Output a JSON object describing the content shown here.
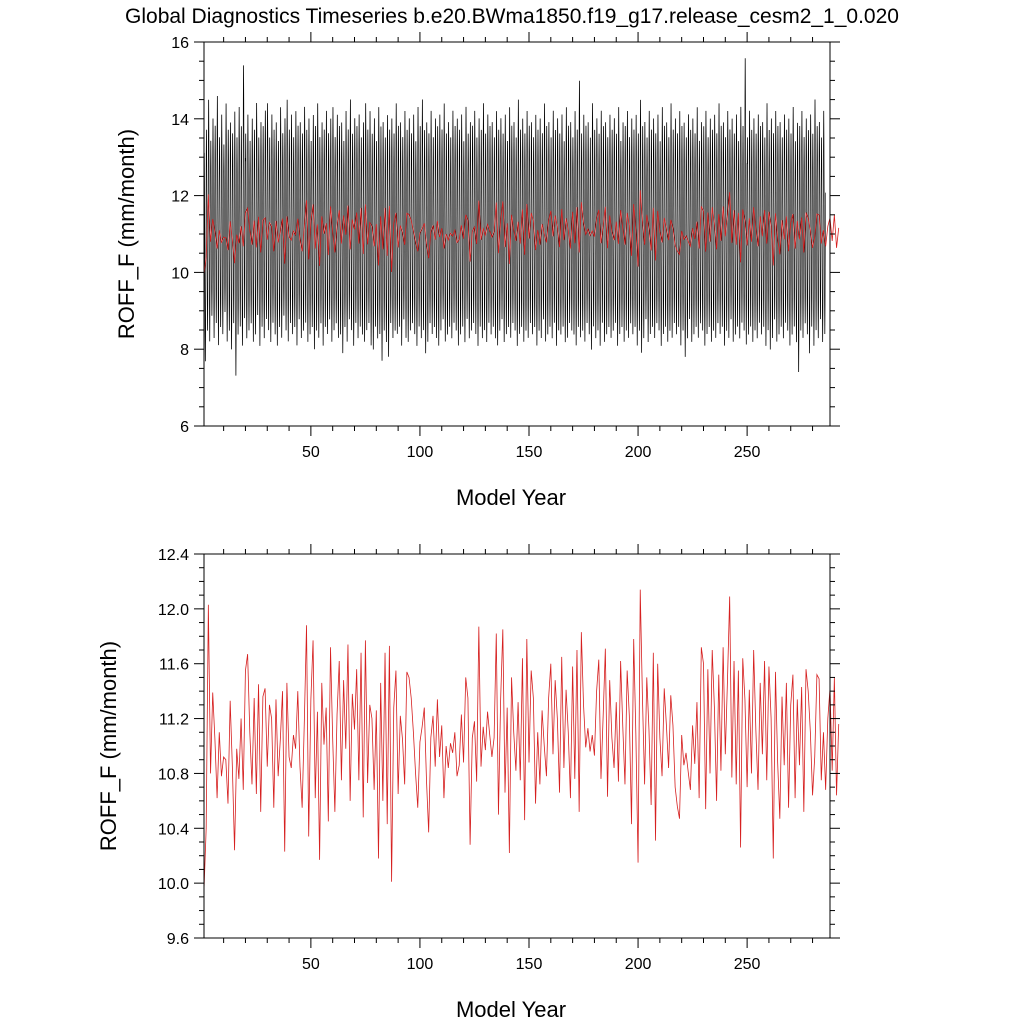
{
  "figure": {
    "title": "Global Diagnostics Timeseries b.e20.BWma1850.f19_g17.release_cesm2_1_0.020"
  },
  "colors": {
    "monthly_series": "#000000",
    "annual_series": "#d62020",
    "frame": "#000000",
    "background": "#ffffff"
  },
  "chart_data": [
    {
      "type": "line",
      "title": "",
      "xlabel": "Model Year",
      "ylabel": "ROFF_F (mm/month)",
      "xlim": [
        1,
        288
      ],
      "ylim": [
        6,
        16
      ],
      "x_ticks": [
        50,
        100,
        150,
        200,
        250
      ],
      "x_tick_labels": [
        "50",
        "100",
        "150",
        "200",
        "250"
      ],
      "y_ticks": [
        6,
        8,
        10,
        12,
        14,
        16
      ],
      "y_tick_labels": [
        "6",
        "8",
        "10",
        "12",
        "14",
        "16"
      ],
      "grid": false,
      "legend": "none",
      "series": [
        {
          "color": "#000000",
          "x_start": 1,
          "x_step": 0.0833333,
          "envelope_note": "",
          "annual_min": [
            7.6,
            8.4,
            8.1,
            8.8,
            8.2,
            8.6,
            8.0,
            8.5,
            8.3,
            8.9,
            8.1,
            8.4,
            7.9,
            8.6,
            7.2,
            8.3,
            8.5,
            8.0,
            8.7,
            8.2,
            8.4,
            8.6,
            8.1,
            8.3,
            8.8,
            8.0,
            8.5,
            8.2,
            8.7,
            8.4,
            8.1,
            8.6,
            8.3,
            8.0,
            8.5,
            8.2,
            8.8,
            8.4,
            8.1,
            8.6,
            8.3,
            8.5,
            8.0,
            8.7,
            8.2,
            8.4,
            8.6,
            8.1,
            8.3,
            8.5,
            7.9,
            8.4,
            8.2,
            8.6,
            8.0,
            8.5,
            8.3,
            8.7,
            8.1,
            8.4,
            8.6,
            8.2,
            8.3,
            7.8,
            8.5,
            8.1,
            8.7,
            8.4,
            8.0,
            8.6,
            8.2,
            8.5,
            8.3,
            8.1,
            8.4,
            8.6,
            8.0,
            7.9,
            8.5,
            8.2,
            8.3,
            7.6,
            8.4,
            8.1,
            7.7,
            8.6,
            8.2,
            8.4,
            8.3,
            8.5,
            8.0,
            8.7,
            8.2,
            8.1,
            8.4,
            8.6,
            8.3,
            8.0,
            8.5,
            8.2,
            8.4,
            7.8,
            8.1,
            8.6,
            8.3,
            8.5,
            8.2,
            8.0,
            8.4,
            8.7,
            8.1,
            8.3,
            8.5,
            8.2,
            8.6,
            8.4,
            8.0,
            8.3,
            8.5,
            8.1,
            8.7,
            8.2,
            8.4,
            8.6,
            8.3,
            8.0,
            8.5,
            8.2,
            8.4,
            8.1,
            8.6,
            8.3,
            8.5,
            8.2,
            8.0,
            8.4,
            8.7,
            8.1,
            8.3,
            8.5,
            8.2,
            8.6,
            8.4,
            8.0,
            8.3,
            8.5,
            8.1,
            8.4,
            8.2,
            8.6,
            8.3,
            8.5,
            8.0,
            8.4,
            8.2,
            8.7,
            8.1,
            8.3,
            8.5,
            8.2,
            8.6,
            8.0,
            8.4,
            8.3,
            8.5,
            8.1,
            8.2,
            8.6,
            8.4,
            8.3,
            8.0,
            8.5,
            8.2,
            8.4,
            8.1,
            8.6,
            8.3,
            7.9,
            8.5,
            8.2,
            8.4,
            8.0,
            8.6,
            8.1,
            8.3,
            8.5,
            8.2,
            8.4,
            8.6,
            8.0,
            8.3,
            8.5,
            8.1,
            8.4,
            8.2,
            8.6,
            8.3,
            8.5,
            8.0,
            8.4,
            7.8,
            8.2,
            8.7,
            8.1,
            8.3,
            8.5,
            8.2,
            8.6,
            8.4,
            8.0,
            8.3,
            8.5,
            8.1,
            8.4,
            8.2,
            8.6,
            8.3,
            8.5,
            8.0,
            8.4,
            7.7,
            8.2,
            8.7,
            8.1,
            8.3,
            8.5,
            8.2,
            8.6,
            8.4,
            8.0,
            8.3,
            8.5,
            8.1,
            8.4,
            8.2,
            8.6,
            8.3,
            8.5,
            8.0,
            8.4,
            8.2,
            8.7,
            8.1,
            8.3,
            8.5,
            8.2,
            8.6,
            8.4,
            8.0,
            8.3,
            8.5,
            8.1,
            8.4,
            8.2,
            8.6,
            8.3,
            8.5,
            8.0,
            8.4,
            7.9,
            8.2,
            8.7,
            8.1,
            8.3,
            8.5,
            8.2,
            8.6,
            8.4,
            8.0,
            8.3,
            8.5,
            8.1,
            7.3,
            8.4,
            8.2,
            8.6,
            8.3,
            7.8,
            8.5,
            8.0,
            8.4,
            8.2,
            8.7,
            8.1,
            8.3
          ],
          "annual_max": [
            13.2,
            13.8,
            14.6,
            13.5,
            14.1,
            13.9,
            14.7,
            13.6,
            14.2,
            13.4,
            14.5,
            13.8,
            14.0,
            13.7,
            14.3,
            13.6,
            14.4,
            13.9,
            15.5,
            13.7,
            14.2,
            13.5,
            14.1,
            13.8,
            14.5,
            13.6,
            14.0,
            13.9,
            14.3,
            14.5,
            13.6,
            14.2,
            13.8,
            14.0,
            13.5,
            14.4,
            13.7,
            14.1,
            14.6,
            13.8,
            14.2,
            13.6,
            14.3,
            13.9,
            14.0,
            13.7,
            14.4,
            13.8,
            14.1,
            13.5,
            14.2,
            13.9,
            14.5,
            13.6,
            14.0,
            13.8,
            14.3,
            13.7,
            14.1,
            14.4,
            13.6,
            14.2,
            13.9,
            14.0,
            13.5,
            14.3,
            13.8,
            14.6,
            13.7,
            14.1,
            13.9,
            14.2,
            13.6,
            14.0,
            14.5,
            13.8,
            14.3,
            13.7,
            14.1,
            13.5,
            14.4,
            13.9,
            14.0,
            13.6,
            14.2,
            13.8,
            14.1,
            13.7,
            14.5,
            13.9,
            14.0,
            13.6,
            14.3,
            13.8,
            14.1,
            13.7,
            14.2,
            13.5,
            14.4,
            13.9,
            14.6,
            13.8,
            14.0,
            13.7,
            14.3,
            13.6,
            14.1,
            13.9,
            14.2,
            13.8,
            14.5,
            13.7,
            14.0,
            13.6,
            14.3,
            13.9,
            14.1,
            13.8,
            14.2,
            13.5,
            14.4,
            13.7,
            14.0,
            13.9,
            14.3,
            13.6,
            14.1,
            13.8,
            14.5,
            13.7,
            14.2,
            13.9,
            14.0,
            13.6,
            14.3,
            13.8,
            14.1,
            13.7,
            14.2,
            13.5,
            14.4,
            13.9,
            14.0,
            13.6,
            14.6,
            13.8,
            14.1,
            13.7,
            14.3,
            13.9,
            14.0,
            13.6,
            14.2,
            13.8,
            14.1,
            13.7,
            14.5,
            13.9,
            14.0,
            13.6,
            14.3,
            13.8,
            14.1,
            13.7,
            14.2,
            13.5,
            14.4,
            13.9,
            14.0,
            13.6,
            14.3,
            13.8,
            15.1,
            13.7,
            14.2,
            13.9,
            14.0,
            13.6,
            14.5,
            13.8,
            14.1,
            13.7,
            14.3,
            13.9,
            14.0,
            13.6,
            14.2,
            13.8,
            14.1,
            13.7,
            14.4,
            13.5,
            14.0,
            13.9,
            14.3,
            13.6,
            14.1,
            13.8,
            14.2,
            13.7,
            14.6,
            13.9,
            14.0,
            13.6,
            14.3,
            13.8,
            14.1,
            13.7,
            14.2,
            13.5,
            14.4,
            13.9,
            14.0,
            13.6,
            14.5,
            13.8,
            14.1,
            13.7,
            14.3,
            13.9,
            14.0,
            13.6,
            14.2,
            13.8,
            14.1,
            13.7,
            14.4,
            13.5,
            14.0,
            13.9,
            14.3,
            13.6,
            14.1,
            13.8,
            14.2,
            13.7,
            14.5,
            13.9,
            14.0,
            13.6,
            14.3,
            13.8,
            14.1,
            13.7,
            14.2,
            13.5,
            14.4,
            13.9,
            15.7,
            13.6,
            14.3,
            13.8,
            14.1,
            13.7,
            14.2,
            13.9,
            14.0,
            13.6,
            14.5,
            13.8,
            14.1,
            13.7,
            14.3,
            13.9,
            14.0,
            13.6,
            14.2,
            13.8,
            14.1,
            13.7,
            14.4,
            13.5,
            14.0,
            13.9,
            14.3,
            13.6,
            14.1,
            13.8,
            14.2,
            13.7,
            14.6,
            13.9,
            14.0,
            13.6,
            14.3,
            13.8,
            15.0,
            13.7
          ]
        },
        {
          "color": "#d62020",
          "x_start": 1,
          "x_step": 1,
          "values": [
            9.95,
            10.4,
            12.03,
            10.8,
            11.39,
            11.05,
            10.62,
            11.1,
            10.78,
            10.92,
            10.9,
            10.58,
            11.33,
            10.85,
            10.24,
            10.98,
            10.76,
            11.2,
            10.68,
            11.55,
            11.67,
            11.1,
            10.72,
            11.35,
            10.65,
            11.45,
            10.52,
            11.36,
            11.42,
            10.85,
            11.3,
            11.2,
            10.55,
            11.34,
            10.78,
            11.05,
            11.4,
            10.23,
            11.46,
            10.92,
            10.84,
            11.08,
            10.98,
            11.4,
            10.85,
            10.55,
            11.18,
            11.88,
            10.34,
            11.34,
            11.77,
            10.62,
            11.25,
            10.17,
            11.46,
            11.01,
            11.28,
            10.45,
            11.72,
            11.05,
            10.52,
            11.23,
            11.62,
            10.75,
            11.48,
            10.98,
            11.74,
            10.6,
            11.38,
            11.12,
            11.56,
            10.75,
            11.68,
            10.48,
            11.77,
            10.73,
            11.3,
            11.2,
            10.68,
            11.26,
            10.18,
            11.46,
            10.6,
            11.68,
            10.43,
            11.73,
            10.01,
            11.28,
            11.55,
            10.65,
            11.22,
            11.05,
            10.72,
            11.54,
            11.5,
            11.35,
            11.1,
            10.8,
            10.55,
            11.03,
            11.14,
            11.28,
            10.75,
            10.37,
            11.06,
            11.22,
            10.85,
            11.34,
            10.92,
            11.15,
            10.62,
            11.0,
            10.84,
            11.02,
            10.95,
            11.1,
            10.78,
            10.86,
            11.23,
            10.88,
            11.5,
            11.35,
            10.28,
            11.06,
            11.18,
            10.74,
            11.87,
            10.85,
            11.14,
            10.97,
            11.25,
            11.08,
            10.92,
            11.06,
            11.82,
            10.5,
            11.34,
            11.85,
            10.66,
            11.28,
            10.22,
            11.5,
            11.1,
            10.82,
            11.32,
            10.75,
            11.64,
            10.46,
            11.78,
            10.88,
            11.55,
            11.35,
            10.58,
            11.1,
            10.72,
            11.26,
            11.0,
            10.78,
            11.35,
            11.6,
            10.94,
            11.48,
            11.2,
            10.66,
            11.65,
            10.84,
            11.41,
            11.1,
            10.62,
            11.58,
            10.76,
            11.7,
            10.52,
            11.83,
            11.3,
            10.99,
            11.13,
            10.96,
            11.08,
            10.93,
            11.4,
            11.63,
            10.76,
            11.22,
            11.71,
            10.63,
            11.48,
            11.06,
            10.84,
            11.32,
            10.74,
            11.62,
            11.14,
            10.72,
            11.55,
            11.22,
            10.43,
            11.78,
            11.08,
            10.15,
            12.14,
            11.36,
            10.72,
            11.5,
            11.12,
            10.57,
            11.68,
            10.31,
            11.6,
            11.06,
            10.78,
            11.42,
            11.15,
            10.84,
            11.37,
            11.15,
            10.7,
            10.56,
            10.47,
            11.08,
            10.86,
            10.95,
            10.81,
            10.68,
            11.15,
            10.87,
            11.32,
            10.62,
            11.72,
            11.6,
            10.54,
            11.56,
            10.8,
            11.7,
            11.28,
            10.6,
            11.52,
            10.82,
            11.72,
            10.94,
            11.48,
            12.09,
            10.77,
            11.62,
            10.72,
            11.55,
            10.26,
            11.64,
            11.34,
            10.7,
            11.41,
            10.8,
            11.7,
            11.12,
            10.68,
            11.46,
            10.94,
            11.62,
            10.75,
            11.58,
            11.2,
            10.18,
            11.54,
            10.88,
            10.47,
            11.36,
            10.86,
            11.46,
            10.55,
            11.3,
            11.52,
            10.62,
            11.34,
            10.86,
            11.43,
            10.52,
            11.56,
            11.4,
            11.1,
            10.64,
            10.92,
            11.52,
            11.49,
            10.75,
            11.1,
            10.68,
            11.2,
            11.42,
            10.82,
            11.5,
            10.64,
            11.16
          ]
        }
      ]
    },
    {
      "type": "line",
      "title": "",
      "xlabel": "Model Year",
      "ylabel": "ROFF_F (mm/month)",
      "xlim": [
        1,
        288
      ],
      "ylim": [
        9.6,
        12.4
      ],
      "x_ticks": [
        50,
        100,
        150,
        200,
        250
      ],
      "x_tick_labels": [
        "50",
        "100",
        "150",
        "200",
        "250"
      ],
      "y_ticks": [
        9.6,
        10.0,
        10.4,
        10.8,
        11.2,
        11.6,
        12.0,
        12.4
      ],
      "y_tick_labels": [
        "9.6",
        "10.0",
        "10.4",
        "10.8",
        "11.2",
        "11.6",
        "12.0",
        "12.4"
      ],
      "grid": false,
      "legend": "none",
      "series": [
        {
          "color": "#d62020",
          "x_start": 1,
          "x_step": 1,
          "values_ref": "same as chart 1 annual series"
        }
      ]
    }
  ]
}
